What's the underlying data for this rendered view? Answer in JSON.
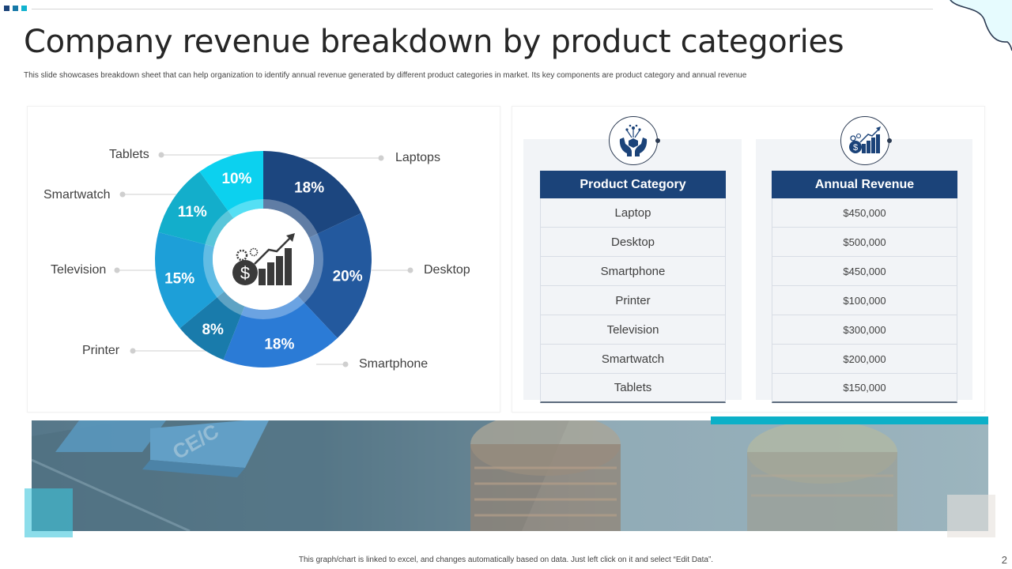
{
  "header": {
    "title": "Company revenue breakdown by product categories",
    "subtitle": "This slide showcases breakdown sheet that can help organization to identify annual revenue generated by different product categories in market. Its  key components are product category and annual revenue",
    "accent_squares": [
      "#1b4379",
      "#1679a8",
      "#12b3cf"
    ]
  },
  "chart_data": {
    "type": "pie",
    "variant": "donut",
    "title": "",
    "categories": [
      "Laptops",
      "Desktop",
      "Smartphone",
      "Printer",
      "Television",
      "Smartwatch",
      "Tablets"
    ],
    "values": [
      18,
      20,
      18,
      8,
      15,
      11,
      10
    ],
    "labels": [
      "18%",
      "20%",
      "18%",
      "8%",
      "15%",
      "11%",
      "10%"
    ],
    "colors": [
      "#1c467f",
      "#23599e",
      "#2b7bd6",
      "#197bab",
      "#1d9fd8",
      "#13aecb",
      "#0cd1ef"
    ],
    "start_angle": "12 o'clock, clockwise",
    "center_icon": "revenue-growth-icon",
    "legend_position": "callouts around donut"
  },
  "legend": {
    "laptops": "Laptops",
    "desktop": "Desktop",
    "smartphone": "Smartphone",
    "printer": "Printer",
    "television": "Television",
    "smartwatch": "Smartwatch",
    "tablets": "Tablets"
  },
  "table": {
    "product_header": "Product Category",
    "revenue_header": "Annual Revenue",
    "product_icon": "hands-product-icon",
    "revenue_icon": "revenue-growth-icon",
    "rows": [
      {
        "category": "Laptop",
        "revenue": "$450,000"
      },
      {
        "category": "Desktop",
        "revenue": "$500,000"
      },
      {
        "category": "Smartphone",
        "revenue": "$450,000"
      },
      {
        "category": "Printer",
        "revenue": "$100,000"
      },
      {
        "category": "Television",
        "revenue": "$300,000"
      },
      {
        "category": "Smartwatch",
        "revenue": "$200,000"
      },
      {
        "category": "Tablets",
        "revenue": "$150,000"
      }
    ]
  },
  "footer": {
    "note": "This graph/chart is linked to excel, and changes automatically based on data. Just left click on it and select “Edit Data”.",
    "page_number": "2"
  },
  "colors": {
    "header_navy": "#1b4379",
    "teal_accent": "#0cb0c8"
  }
}
